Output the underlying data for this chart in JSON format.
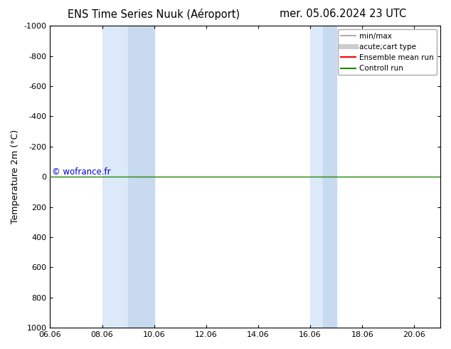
{
  "title_left": "ENS Time Series Nuuk (Aéroport)",
  "title_right": "mer. 05.06.2024 23 UTC",
  "ylabel": "Temperature 2m (°C)",
  "xticks": [
    "06.06",
    "08.06",
    "10.06",
    "12.06",
    "14.06",
    "16.06",
    "18.06",
    "20.06"
  ],
  "yticks": [
    -1000,
    -800,
    -600,
    -400,
    -200,
    0,
    200,
    400,
    600,
    800,
    1000
  ],
  "ylim": [
    -1000,
    1000
  ],
  "xlim": [
    6.06,
    21.06
  ],
  "shaded_bands": [
    {
      "x_start": 8.06,
      "x_end": 9.06
    },
    {
      "x_start": 9.06,
      "x_end": 10.06
    },
    {
      "x_start": 16.06,
      "x_end": 16.56
    },
    {
      "x_start": 16.56,
      "x_end": 17.06
    }
  ],
  "shaded_color": "#ddeeff",
  "horizontal_line_y": 0,
  "horizontal_line_color_green": "#228800",
  "horizontal_line_color_red": "#ff0000",
  "watermark_text": "© wofrance.fr",
  "watermark_color": "#0000cc",
  "legend_items": [
    {
      "label": "min/max",
      "color": "#999999",
      "lw": 1.2,
      "type": "line"
    },
    {
      "label": "acute;cart type",
      "color": "#cccccc",
      "lw": 5,
      "type": "line"
    },
    {
      "label": "Ensemble mean run",
      "color": "#ff0000",
      "lw": 1.5,
      "type": "line"
    },
    {
      "label": "Controll run",
      "color": "#228800",
      "lw": 1.5,
      "type": "line"
    }
  ],
  "background_color": "#ffffff",
  "title_fontsize": 10.5,
  "tick_fontsize": 8,
  "ylabel_fontsize": 9,
  "legend_fontsize": 7.5
}
